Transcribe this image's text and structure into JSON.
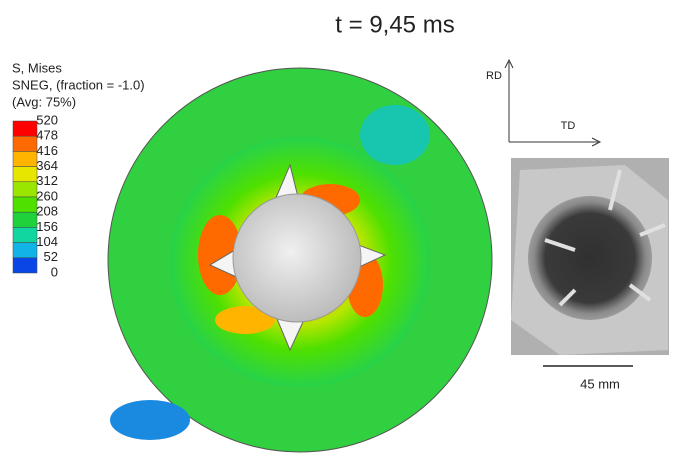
{
  "title": "t = 9,45 ms",
  "legend": {
    "lines": [
      "S, Mises",
      "SNEG, (fraction = -1.0)",
      "(Avg: 75%)"
    ],
    "levels": [
      "520",
      "478",
      "416",
      "364",
      "312",
      "260",
      "208",
      "156",
      "104",
      "52",
      "0"
    ],
    "colors": [
      "#ff0000",
      "#ff6a00",
      "#ffb400",
      "#e6e600",
      "#9be600",
      "#4fe000",
      "#1fd23c",
      "#12d6a0",
      "#11b4e6",
      "#0a46e6"
    ]
  },
  "axes": {
    "rd": "RD",
    "td": "TD"
  },
  "scale": "45 mm"
}
